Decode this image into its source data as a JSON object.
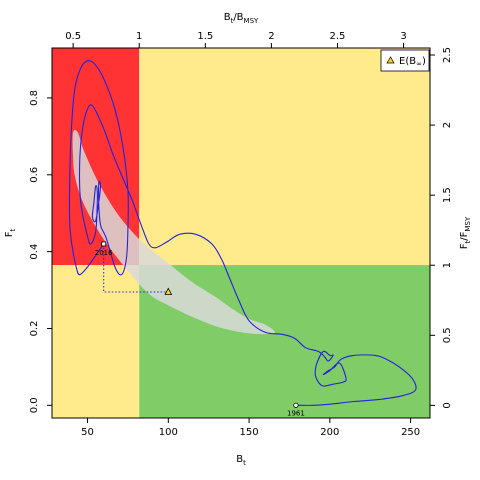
{
  "chart_data": {
    "type": "line",
    "x_axis_bottom": {
      "label": "B",
      "label_sub": "t",
      "range": [
        28,
        262
      ],
      "ticks": [
        50,
        100,
        150,
        200,
        250
      ]
    },
    "x_axis_top": {
      "label": "B",
      "label_sub": "t",
      "label_mid": "/B",
      "label_sub2": "MSY",
      "range": [
        0.34,
        3.2
      ],
      "ticks": [
        "0.5",
        "1",
        "1.5",
        "2",
        "2.5",
        "3"
      ]
    },
    "y_axis_left": {
      "label": "F",
      "label_sub": "t",
      "range": [
        -0.033,
        0.93
      ],
      "ticks": [
        "0.0",
        "0.2",
        "0.4",
        "0.6",
        "0.8"
      ]
    },
    "y_axis_right": {
      "label": "F",
      "label_sub": "t",
      "label_mid": "/F",
      "label_sub2": "MSY",
      "range": [
        -0.09,
        2.55
      ],
      "ticks": [
        "0",
        "0.5",
        "1",
        "1.5",
        "2",
        "2.5"
      ]
    },
    "bmsy": 82,
    "fmsy": 0.365,
    "quadrant_colors": {
      "red": "#ff3333",
      "yellow": "#ffeb8c",
      "green": "#80cc66"
    },
    "trajectory_color": "#2222dd",
    "trajectory": [
      [
        179,
        0.0
      ],
      [
        190,
        0.0
      ],
      [
        200,
        0.003
      ],
      [
        215,
        0.01
      ],
      [
        230,
        0.015
      ],
      [
        245,
        0.025
      ],
      [
        253,
        0.04
      ],
      [
        251,
        0.07
      ],
      [
        243,
        0.1
      ],
      [
        235,
        0.12
      ],
      [
        228,
        0.13
      ],
      [
        215,
        0.13
      ],
      [
        207,
        0.12
      ],
      [
        203,
        0.1
      ],
      [
        199,
        0.09
      ],
      [
        196,
        0.08
      ],
      [
        200,
        0.09
      ],
      [
        206,
        0.11
      ],
      [
        210,
        0.07
      ],
      [
        208,
        0.06
      ],
      [
        202,
        0.055
      ],
      [
        196,
        0.05
      ],
      [
        193,
        0.06
      ],
      [
        191,
        0.08
      ],
      [
        192,
        0.11
      ],
      [
        196,
        0.14
      ],
      [
        200,
        0.13
      ],
      [
        202,
        0.13
      ],
      [
        199,
        0.115
      ],
      [
        197,
        0.125
      ],
      [
        193,
        0.14
      ],
      [
        185,
        0.15
      ],
      [
        178,
        0.175
      ],
      [
        170,
        0.185
      ],
      [
        160,
        0.19
      ],
      [
        150,
        0.22
      ],
      [
        144,
        0.27
      ],
      [
        138,
        0.33
      ],
      [
        133,
        0.38
      ],
      [
        127,
        0.42
      ],
      [
        117,
        0.445
      ],
      [
        107,
        0.445
      ],
      [
        99,
        0.425
      ],
      [
        92,
        0.41
      ],
      [
        88,
        0.42
      ],
      [
        84,
        0.46
      ],
      [
        78,
        0.53
      ],
      [
        73,
        0.58
      ],
      [
        66,
        0.65
      ],
      [
        60,
        0.72
      ],
      [
        53,
        0.78
      ],
      [
        49,
        0.76
      ],
      [
        46,
        0.69
      ],
      [
        45,
        0.6
      ],
      [
        46,
        0.52
      ],
      [
        50,
        0.44
      ],
      [
        52,
        0.42
      ],
      [
        55,
        0.45
      ],
      [
        56,
        0.52
      ],
      [
        56,
        0.56
      ],
      [
        55,
        0.57
      ],
      [
        54,
        0.53
      ],
      [
        53,
        0.49
      ],
      [
        55,
        0.48
      ],
      [
        57,
        0.53
      ],
      [
        58,
        0.57
      ],
      [
        57,
        0.58
      ],
      [
        57,
        0.52
      ],
      [
        58,
        0.47
      ],
      [
        60,
        0.45
      ],
      [
        62,
        0.43
      ],
      [
        67,
        0.36
      ],
      [
        71,
        0.34
      ],
      [
        74,
        0.38
      ],
      [
        75,
        0.46
      ],
      [
        75,
        0.56
      ],
      [
        72,
        0.67
      ],
      [
        67,
        0.77
      ],
      [
        60,
        0.85
      ],
      [
        54,
        0.89
      ],
      [
        49,
        0.895
      ],
      [
        45,
        0.87
      ],
      [
        42,
        0.82
      ],
      [
        40,
        0.72
      ],
      [
        39,
        0.6
      ],
      [
        39,
        0.47
      ],
      [
        41,
        0.4
      ],
      [
        43,
        0.36
      ],
      [
        45,
        0.34
      ],
      [
        50,
        0.36
      ],
      [
        55,
        0.39
      ],
      [
        60,
        0.42
      ]
    ],
    "confidence_region": [
      [
        41,
        0.71
      ],
      [
        44,
        0.71
      ],
      [
        48,
        0.66
      ],
      [
        58,
        0.57
      ],
      [
        70,
        0.49
      ],
      [
        85,
        0.42
      ],
      [
        100,
        0.37
      ],
      [
        115,
        0.32
      ],
      [
        130,
        0.28
      ],
      [
        140,
        0.25
      ],
      [
        150,
        0.225
      ],
      [
        160,
        0.21
      ],
      [
        166,
        0.19
      ],
      [
        158,
        0.185
      ],
      [
        145,
        0.19
      ],
      [
        130,
        0.205
      ],
      [
        115,
        0.23
      ],
      [
        100,
        0.26
      ],
      [
        88,
        0.29
      ],
      [
        75,
        0.35
      ],
      [
        62,
        0.42
      ],
      [
        53,
        0.48
      ],
      [
        46,
        0.54
      ],
      [
        42,
        0.6
      ],
      [
        41,
        0.65
      ]
    ],
    "start_point": {
      "x": 179,
      "y": 0.0,
      "label": "1961"
    },
    "end_point": {
      "x": 60,
      "y": 0.42,
      "label": "2016"
    },
    "expected_point": {
      "x": 100,
      "y": 0.295
    },
    "projection_line": [
      [
        60,
        0.42
      ],
      [
        60,
        0.295
      ],
      [
        100,
        0.295
      ]
    ],
    "legend": {
      "position": "top-right",
      "entry_prefix": "E(B",
      "entry_sub": "∞",
      "entry_suffix": ")"
    }
  }
}
